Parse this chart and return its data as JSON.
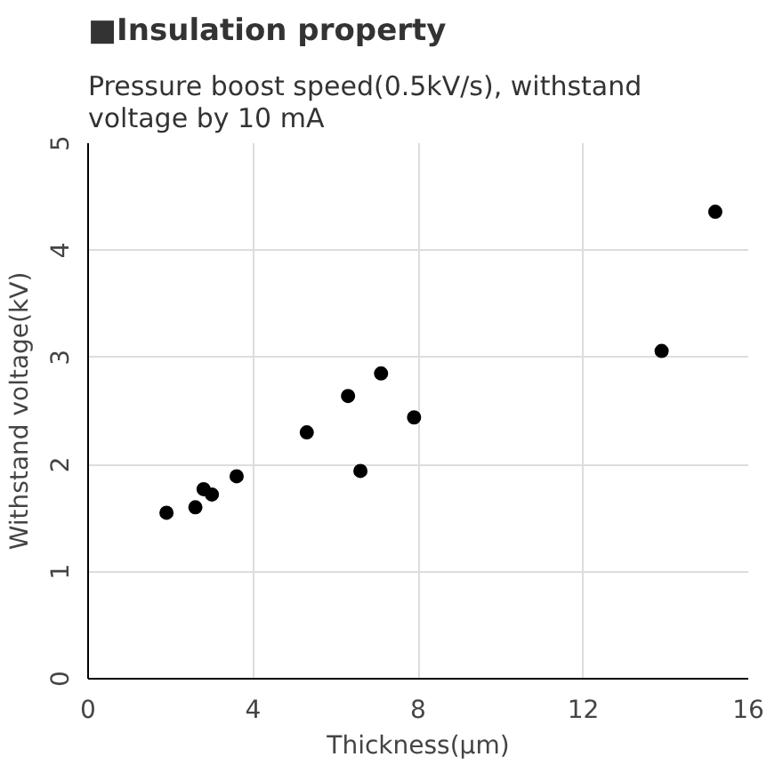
{
  "chart_data": {
    "type": "scatter",
    "title": "■Insulation property",
    "subtitle": "Pressure boost speed(0.5kV/s), withstand voltage by 10 mA",
    "xlabel": "Thickness(µm)",
    "ylabel": "Withstand voltage(kV)",
    "x": [
      1.9,
      2.6,
      2.8,
      3.0,
      3.6,
      5.3,
      6.3,
      6.6,
      7.1,
      7.9,
      13.9,
      15.2
    ],
    "values": [
      1.55,
      1.6,
      1.77,
      1.72,
      1.89,
      2.3,
      2.64,
      1.94,
      2.85,
      2.44,
      3.06,
      4.36
    ],
    "color": "#000000",
    "marker": "circle",
    "xlim": [
      0,
      16
    ],
    "ylim": [
      0,
      5
    ],
    "xticks": [
      0,
      4,
      8,
      12,
      16
    ],
    "yticks": [
      0,
      1,
      2,
      3,
      4,
      5
    ],
    "grid": true
  }
}
